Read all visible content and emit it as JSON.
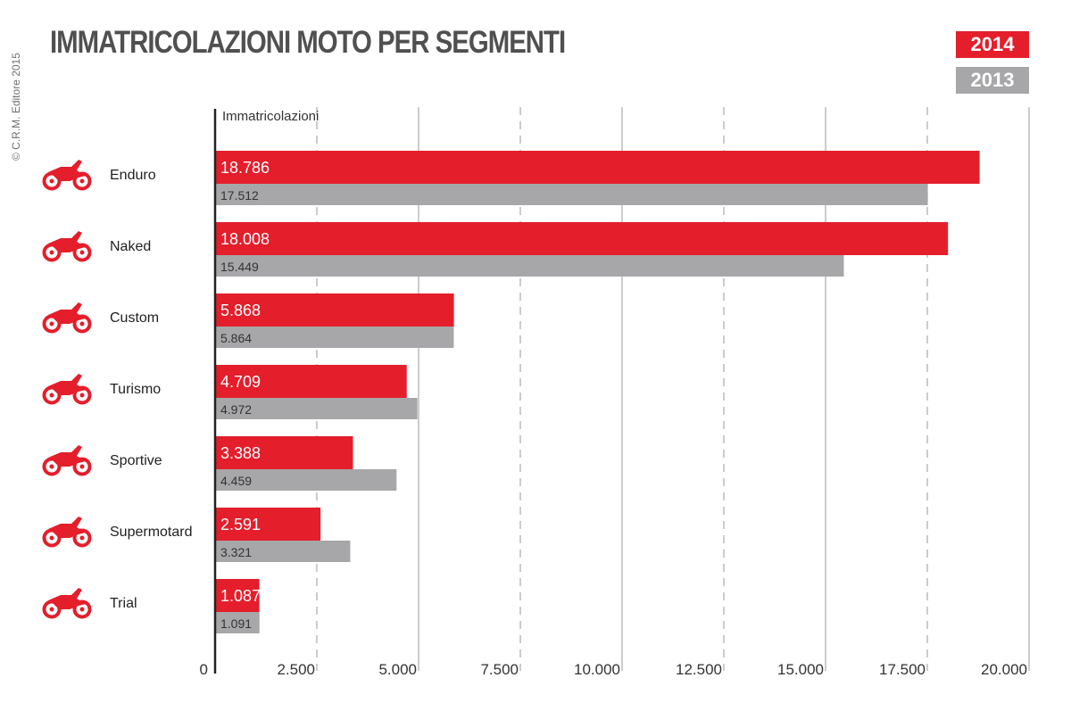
{
  "title": "IMMATRICOLAZIONI MOTO PER SEGMENTI",
  "copyright": "© C.R.M. Editore 2015",
  "colors": {
    "series_2014": "#e41e2b",
    "series_2013": "#a7a7a9"
  },
  "chart_data": {
    "type": "bar",
    "orientation": "horizontal",
    "title": "IMMATRICOLAZIONI MOTO PER SEGMENTI",
    "xlabel": "Immatricolazioni",
    "ylabel": "",
    "categories": [
      "Enduro",
      "Naked",
      "Custom",
      "Turismo",
      "Sportive",
      "Supermotard",
      "Trial"
    ],
    "icons": [
      "enduro-motorcycle-icon",
      "naked-motorcycle-icon",
      "custom-motorcycle-icon",
      "touring-motorcycle-icon",
      "sport-motorcycle-icon",
      "supermotard-motorcycle-icon",
      "trial-motorcycle-icon"
    ],
    "series": [
      {
        "name": "2014",
        "values": [
          18786,
          18008,
          5868,
          4709,
          3388,
          2591,
          1087
        ],
        "labels": [
          "18.786",
          "18.008",
          "5.868",
          "4.709",
          "3.388",
          "2.591",
          "1.087"
        ]
      },
      {
        "name": "2013",
        "values": [
          17512,
          15449,
          5864,
          4972,
          4459,
          3321,
          1091
        ],
        "labels": [
          "17.512",
          "15.449",
          "5.864",
          "4.972",
          "4.459",
          "3.321",
          "1.091"
        ]
      }
    ],
    "xlim": [
      0,
      20000
    ],
    "ticks": [
      0,
      2500,
      5000,
      7500,
      10000,
      12500,
      15000,
      17500,
      20000
    ],
    "tick_labels": [
      "0",
      "2.500",
      "5.000",
      "7.500",
      "10.000",
      "12.500",
      "15.000",
      "17.500",
      "20.000"
    ],
    "grid": true,
    "legend_position": "top-right"
  }
}
